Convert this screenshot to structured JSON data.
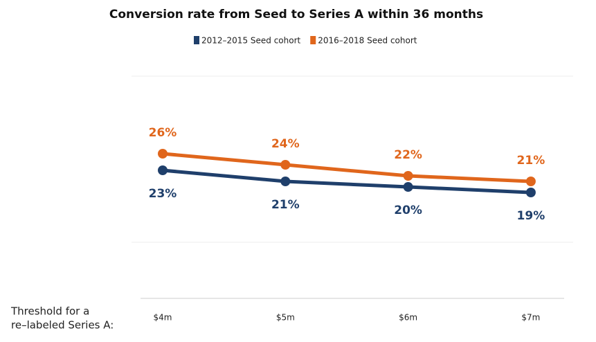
{
  "chart_data": {
    "type": "line",
    "title": "Conversion rate from Seed to Series A within 36 months",
    "x_axis_label_lines": [
      "Threshold for a",
      "re–labeled Series A:"
    ],
    "categories": [
      "$4m",
      "$5m",
      "$6m",
      "$7m"
    ],
    "series": [
      {
        "name": "2012–2015 Seed cohort",
        "color": "#1f3f6b",
        "values": [
          23,
          21,
          20,
          19
        ],
        "value_labels": [
          "23%",
          "21%",
          "20%",
          "19%"
        ]
      },
      {
        "name": "2016–2018 Seed cohort",
        "color": "#e0661c",
        "values": [
          26,
          24,
          22,
          21
        ],
        "value_labels": [
          "26%",
          "24%",
          "22%",
          "21%"
        ]
      }
    ],
    "ylim": [
      0,
      40
    ],
    "yticks": [
      10,
      40
    ],
    "grid": true
  }
}
